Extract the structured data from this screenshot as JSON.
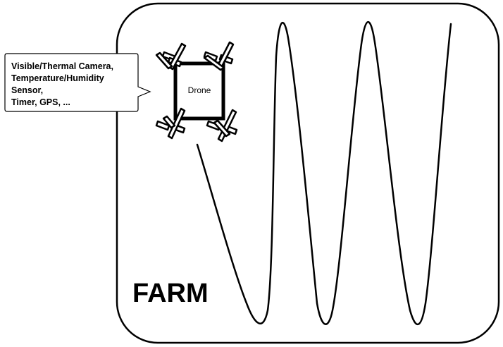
{
  "farm": {
    "label": "FARM"
  },
  "drone": {
    "label": "Drone"
  },
  "sensor_callout": {
    "lines": [
      "Visible/Thermal Camera,",
      "Temperature/Humidity",
      "Sensor,",
      "Timer, GPS, ..."
    ]
  },
  "colors": {
    "stroke": "#000000",
    "background": "#ffffff"
  },
  "icons": {
    "drone": "quadcopter-icon",
    "flight_path": "zigzag-path"
  }
}
